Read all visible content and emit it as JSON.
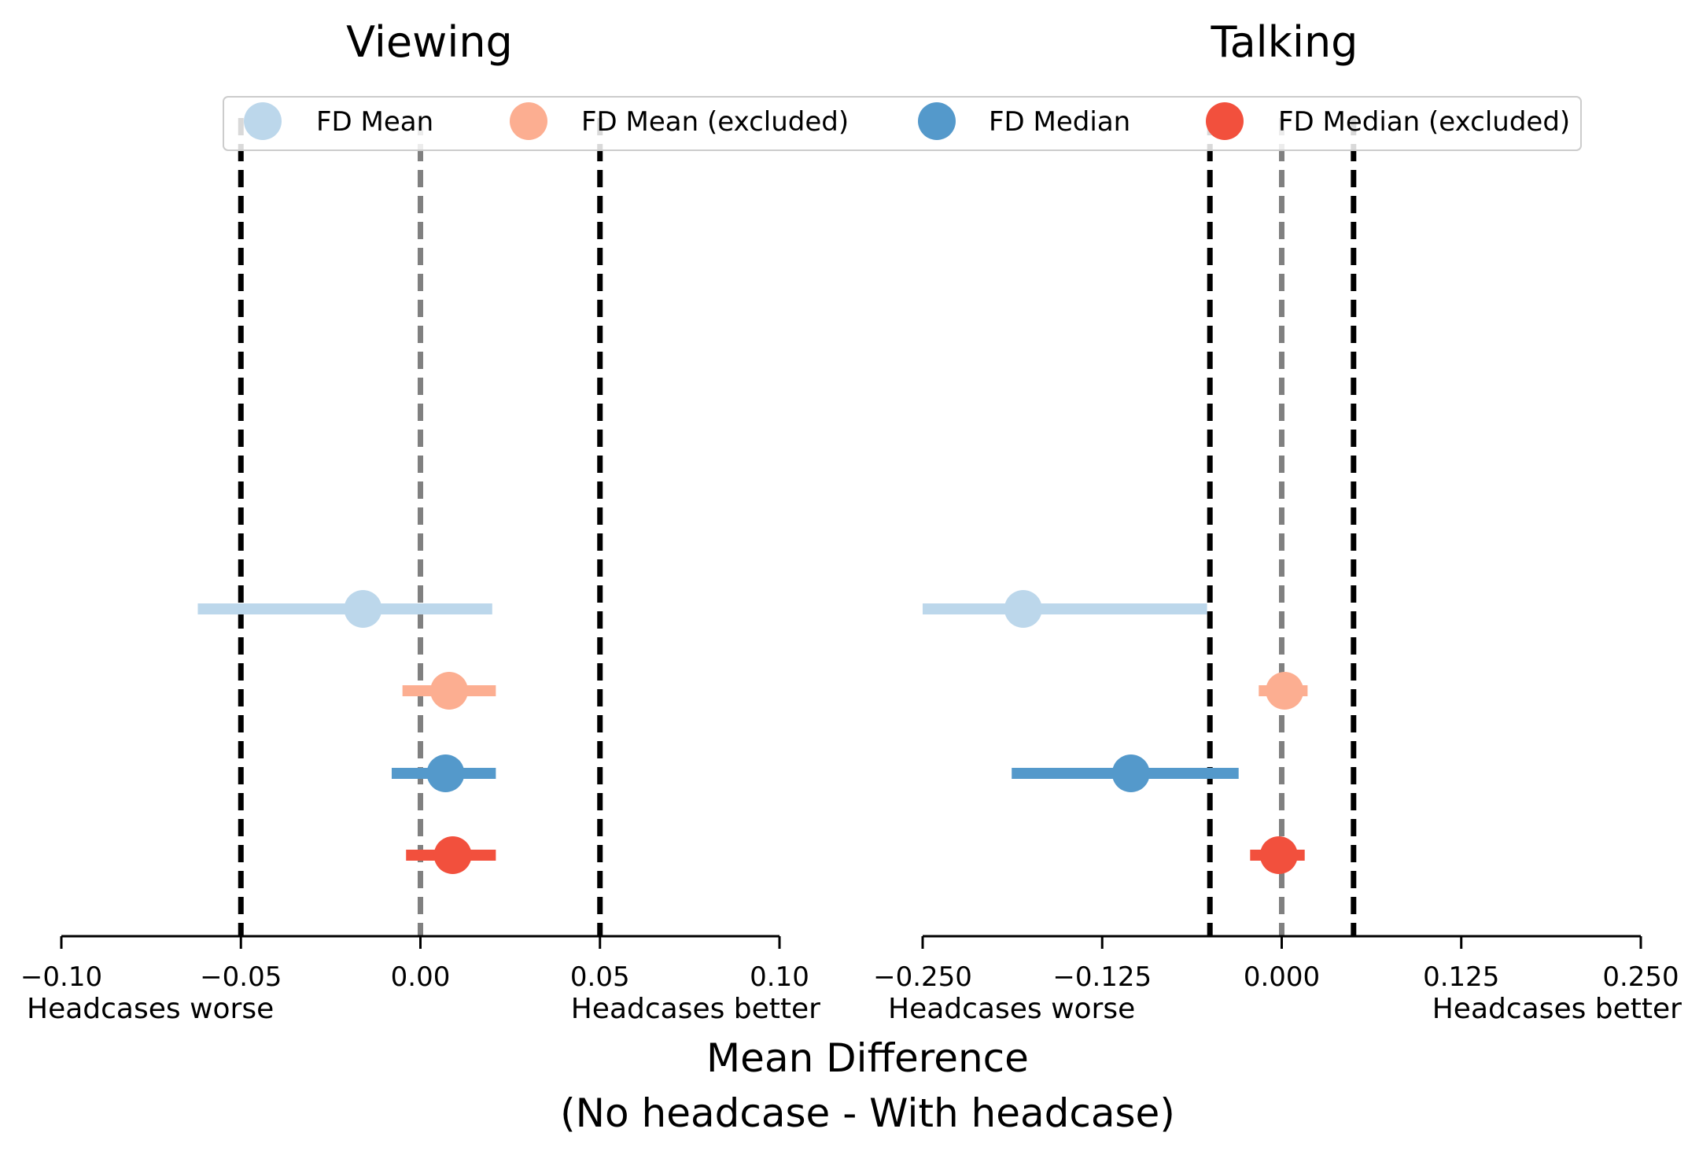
{
  "chart_data": {
    "type": "scatter",
    "xlabel_lines": [
      "Mean Difference",
      "(No headcase - With headcase)"
    ],
    "legend": {
      "placement": "top",
      "entries": [
        {
          "name": "FD Mean",
          "color": "#bcd7eb"
        },
        {
          "name": "FD Mean (excluded)",
          "color": "#fcae91"
        },
        {
          "name": "FD Median",
          "color": "#5499cb"
        },
        {
          "name": "FD Median (excluded)",
          "color": "#f2503d"
        }
      ]
    },
    "panels": [
      {
        "title": "Viewing",
        "xlim": [
          -0.1,
          0.1
        ],
        "ticks": [
          -0.1,
          -0.05,
          0.0,
          0.05,
          0.1
        ],
        "tick_labels": [
          "−0.10",
          "−0.05",
          "0.00",
          "0.05",
          "0.10"
        ],
        "left_note": "Headcases worse",
        "right_note": "Headcases better",
        "reference_lines": {
          "zero": 0.0,
          "bounds": [
            -0.05,
            0.05
          ]
        },
        "series": [
          {
            "name": "FD Mean",
            "color": "#bcd7eb",
            "value": -0.016,
            "ci": [
              -0.062,
              0.02
            ]
          },
          {
            "name": "FD Mean (excluded)",
            "color": "#fcae91",
            "value": 0.008,
            "ci": [
              -0.005,
              0.021
            ]
          },
          {
            "name": "FD Median",
            "color": "#5499cb",
            "value": 0.007,
            "ci": [
              -0.008,
              0.021
            ]
          },
          {
            "name": "FD Median (excluded)",
            "color": "#f2503d",
            "value": 0.009,
            "ci": [
              -0.004,
              0.021
            ]
          }
        ]
      },
      {
        "title": "Talking",
        "xlim": [
          -0.25,
          0.25
        ],
        "ticks": [
          -0.25,
          -0.125,
          0.0,
          0.125,
          0.25
        ],
        "tick_labels": [
          "−0.250",
          "−0.125",
          "0.000",
          "0.125",
          "0.250"
        ],
        "left_note": "Headcases worse",
        "right_note": "Headcases better",
        "reference_lines": {
          "zero": 0.0,
          "bounds": [
            -0.05,
            0.05
          ]
        },
        "series": [
          {
            "name": "FD Mean",
            "color": "#bcd7eb",
            "value": -0.18,
            "ci": [
              -0.25,
              -0.052
            ]
          },
          {
            "name": "FD Mean (excluded)",
            "color": "#fcae91",
            "value": 0.002,
            "ci": [
              -0.016,
              0.018
            ]
          },
          {
            "name": "FD Median",
            "color": "#5499cb",
            "value": -0.105,
            "ci": [
              -0.188,
              -0.03
            ]
          },
          {
            "name": "FD Median (excluded)",
            "color": "#f2503d",
            "value": -0.002,
            "ci": [
              -0.022,
              0.016
            ]
          }
        ]
      }
    ]
  }
}
